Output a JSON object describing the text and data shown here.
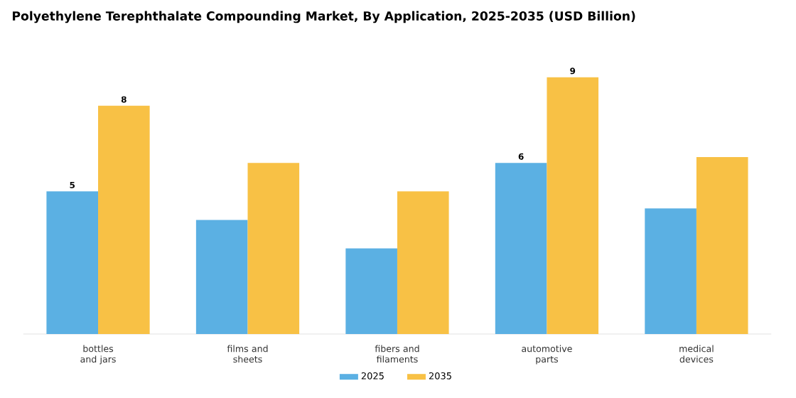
{
  "chart_data": {
    "type": "bar",
    "title": "Polyethylene Terephthalate Compounding Market, By Application, 2025-2035 (USD Billion)",
    "categories": [
      "bottles and jars",
      "films and sheets",
      "fibers and filaments",
      "automotive parts",
      "medical devices"
    ],
    "series": [
      {
        "name": "2025",
        "color": "#5bb0e3",
        "values": [
          5,
          4.0,
          3.0,
          6,
          4.4
        ],
        "value_labels": [
          "5",
          null,
          null,
          "6",
          null
        ]
      },
      {
        "name": "2035",
        "color": "#f8c145",
        "values": [
          8,
          6.0,
          5.0,
          9,
          6.2
        ],
        "value_labels": [
          "8",
          null,
          null,
          "9",
          null
        ]
      }
    ],
    "legend": "bottom"
  }
}
